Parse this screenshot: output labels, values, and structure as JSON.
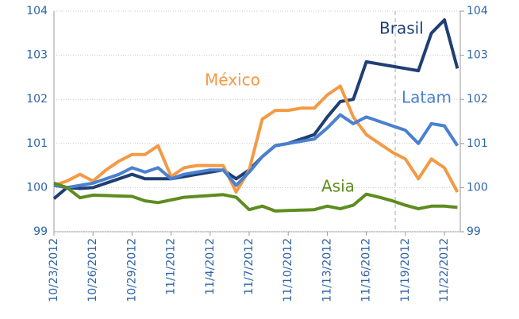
{
  "chart_data": {
    "type": "line",
    "categories": [
      "10/23/2012",
      null,
      null,
      "10/26/2012",
      null,
      null,
      "10/29/2012",
      null,
      null,
      "11/1/2012",
      null,
      null,
      "11/4/2012",
      null,
      null,
      "11/7/2012",
      null,
      null,
      "11/10/2012",
      null,
      null,
      "11/13/2012",
      null,
      null,
      "11/16/2012",
      null,
      null,
      "11/19/2012",
      null,
      null,
      "11/22/2012",
      null
    ],
    "series": [
      {
        "name": "Brasil",
        "color": "#1f3f73",
        "values": [
          99.75,
          100.0,
          99.98,
          100.0,
          100.1,
          100.2,
          100.3,
          100.2,
          100.2,
          100.2,
          100.25,
          100.3,
          100.35,
          100.4,
          100.2,
          100.4,
          100.7,
          100.95,
          101.0,
          101.1,
          101.2,
          101.6,
          101.95,
          102.0,
          102.85,
          102.8,
          102.75,
          102.7,
          102.65,
          103.5,
          103.8,
          102.7
        ]
      },
      {
        "name": "México",
        "color": "#f39a45",
        "values": [
          100.05,
          100.15,
          100.3,
          100.15,
          100.4,
          100.6,
          100.75,
          100.75,
          100.95,
          100.25,
          100.45,
          100.5,
          100.5,
          100.5,
          99.9,
          100.4,
          101.55,
          101.75,
          101.75,
          101.8,
          101.8,
          102.1,
          102.3,
          101.6,
          101.2,
          101.0,
          100.8,
          100.65,
          100.2,
          100.65,
          100.45,
          99.9
        ]
      },
      {
        "name": "Latam",
        "color": "#4a80d0",
        "values": [
          100.05,
          100.0,
          100.05,
          100.1,
          100.2,
          100.3,
          100.45,
          100.35,
          100.45,
          100.2,
          100.3,
          100.35,
          100.4,
          100.4,
          100.05,
          100.35,
          100.7,
          100.95,
          101.0,
          101.05,
          101.1,
          101.35,
          101.65,
          101.45,
          101.6,
          101.5,
          101.4,
          101.3,
          101.0,
          101.45,
          101.4,
          100.95
        ]
      },
      {
        "name": "Asia",
        "color": "#5e8c1f",
        "values": [
          100.1,
          100.0,
          99.77,
          99.83,
          99.82,
          99.81,
          99.8,
          99.7,
          99.66,
          99.72,
          99.78,
          99.8,
          99.82,
          99.84,
          99.78,
          99.5,
          99.58,
          99.47,
          99.48,
          99.49,
          99.5,
          99.58,
          99.52,
          99.6,
          99.85,
          99.78,
          99.7,
          99.6,
          99.52,
          99.58,
          99.58,
          99.55
        ]
      }
    ],
    "ylim": [
      99,
      104
    ],
    "yticks": [
      99,
      100,
      101,
      102,
      103,
      104
    ],
    "y2lim": [
      99,
      104
    ],
    "y2ticks": [
      99,
      100,
      101,
      102,
      103,
      104
    ],
    "grid": true
  }
}
